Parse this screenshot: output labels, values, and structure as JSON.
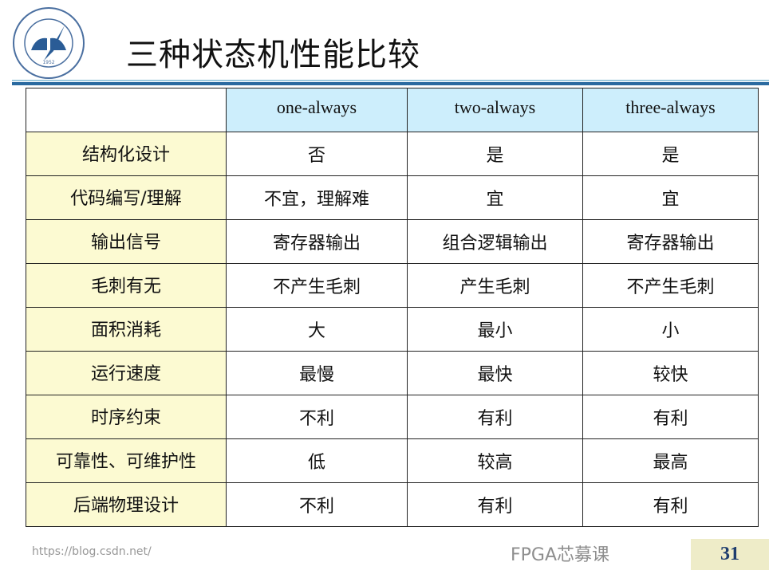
{
  "title": "三种状态机性能比较",
  "logo": {
    "text": "北京航空航天大学",
    "year": "1952",
    "subtext": "BEIHANG UNIVERSITY"
  },
  "table": {
    "headers": [
      "",
      "one-always",
      "two-always",
      "three-always"
    ],
    "rows": [
      [
        "结构化设计",
        "否",
        "是",
        "是"
      ],
      [
        "代码编写/理解",
        "不宜，理解难",
        "宜",
        "宜"
      ],
      [
        "输出信号",
        "寄存器输出",
        "组合逻辑输出",
        "寄存器输出"
      ],
      [
        "毛刺有无",
        "不产生毛刺",
        "产生毛刺",
        "不产生毛刺"
      ],
      [
        "面积消耗",
        "大",
        "最小",
        "小"
      ],
      [
        "运行速度",
        "最慢",
        "最快",
        "较快"
      ],
      [
        "时序约束",
        "不利",
        "有利",
        "有利"
      ],
      [
        "可靠性、可维护性",
        "低",
        "较高",
        "最高"
      ],
      [
        "后端物理设计",
        "不利",
        "有利",
        "有利"
      ]
    ]
  },
  "watermark": "FPGA芯募课",
  "url": "https://blog.csdn.net/",
  "page_number": "31",
  "colors": {
    "header_bg": "#cdeefc",
    "first_col_bg": "#fcfad2",
    "rule": "#2a6aa0"
  }
}
